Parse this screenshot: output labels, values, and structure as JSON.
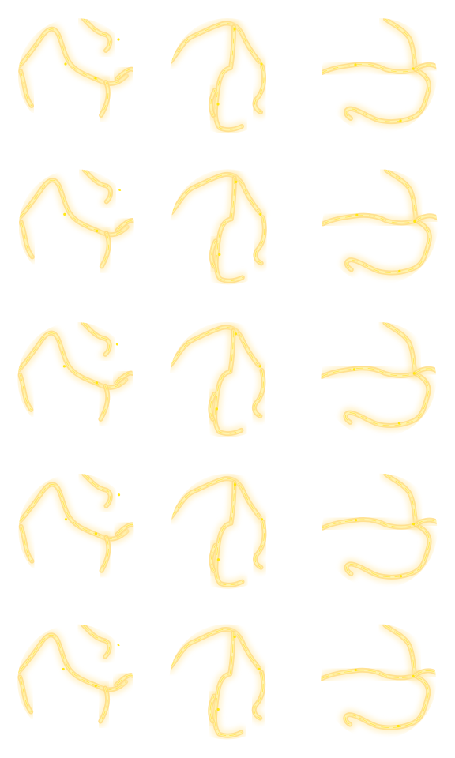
{
  "sheet": {
    "rows": 5,
    "columns": 3,
    "background_color": "#ffffff"
  },
  "colors": {
    "glow_outer": "#ffe9a8",
    "glow_mid": "#ffd978",
    "core": "#ffe34a",
    "highlight": "#fff4b0",
    "spark": "#ffe600"
  },
  "sprites": [
    {
      "name": "bolt-variant-a",
      "icon": "lightning-orb-icon",
      "frames": 5
    },
    {
      "name": "bolt-variant-b",
      "icon": "lightning-orb-icon",
      "frames": 5
    },
    {
      "name": "bolt-variant-c",
      "icon": "lightning-orb-icon",
      "frames": 5
    }
  ]
}
